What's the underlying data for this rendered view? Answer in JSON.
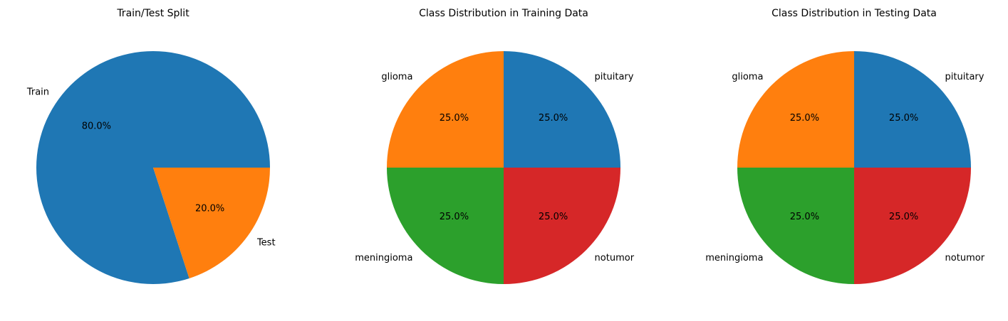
{
  "chart_data": [
    {
      "type": "pie",
      "title": "Train/Test Split",
      "labels": [
        "Train",
        "Test"
      ],
      "values": [
        80.0,
        20.0
      ],
      "autopct": [
        "80.0%",
        "20.0%"
      ],
      "colors": [
        "#1f77b4",
        "#ff7f0e"
      ]
    },
    {
      "type": "pie",
      "title": "Class Distribution in Training Data",
      "labels": [
        "pituitary",
        "glioma",
        "meningioma",
        "notumor"
      ],
      "values": [
        25.0,
        25.0,
        25.0,
        25.0
      ],
      "autopct": [
        "25.0%",
        "25.0%",
        "25.0%",
        "25.0%"
      ],
      "colors": [
        "#1f77b4",
        "#ff7f0e",
        "#2ca02c",
        "#d62728"
      ]
    },
    {
      "type": "pie",
      "title": "Class Distribution in Testing Data",
      "labels": [
        "pituitary",
        "glioma",
        "meningioma",
        "notumor"
      ],
      "values": [
        25.0,
        25.0,
        25.0,
        25.0
      ],
      "autopct": [
        "25.0%",
        "25.0%",
        "25.0%",
        "25.0%"
      ],
      "colors": [
        "#1f77b4",
        "#ff7f0e",
        "#2ca02c",
        "#d62728"
      ]
    }
  ]
}
